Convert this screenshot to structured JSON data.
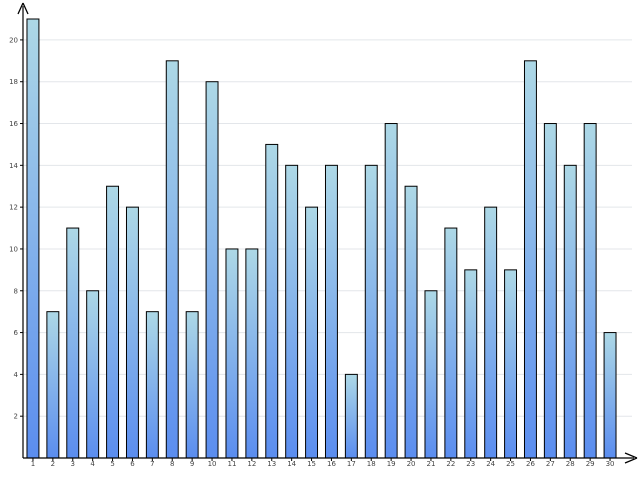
{
  "chart_data": {
    "type": "bar",
    "categories": [
      "1",
      "2",
      "3",
      "4",
      "5",
      "6",
      "7",
      "8",
      "9",
      "10",
      "11",
      "12",
      "13",
      "14",
      "15",
      "16",
      "17",
      "18",
      "19",
      "20",
      "21",
      "22",
      "23",
      "24",
      "25",
      "26",
      "27",
      "28",
      "29",
      "30"
    ],
    "values": [
      21,
      7,
      11,
      8,
      13,
      12,
      7,
      19,
      7,
      18,
      10,
      10,
      15,
      14,
      12,
      14,
      4,
      14,
      16,
      13,
      8,
      11,
      9,
      12,
      9,
      19,
      16,
      14,
      16,
      6
    ],
    "ylim": [
      0,
      21
    ],
    "yticks": [
      2,
      4,
      6,
      8,
      10,
      12,
      14,
      16,
      18,
      20
    ],
    "grid": true,
    "colors": {
      "bar_top": "#add8e6",
      "bar_bottom": "#5b8def",
      "outline": "#000000",
      "grid": "#e3e6ea"
    }
  }
}
